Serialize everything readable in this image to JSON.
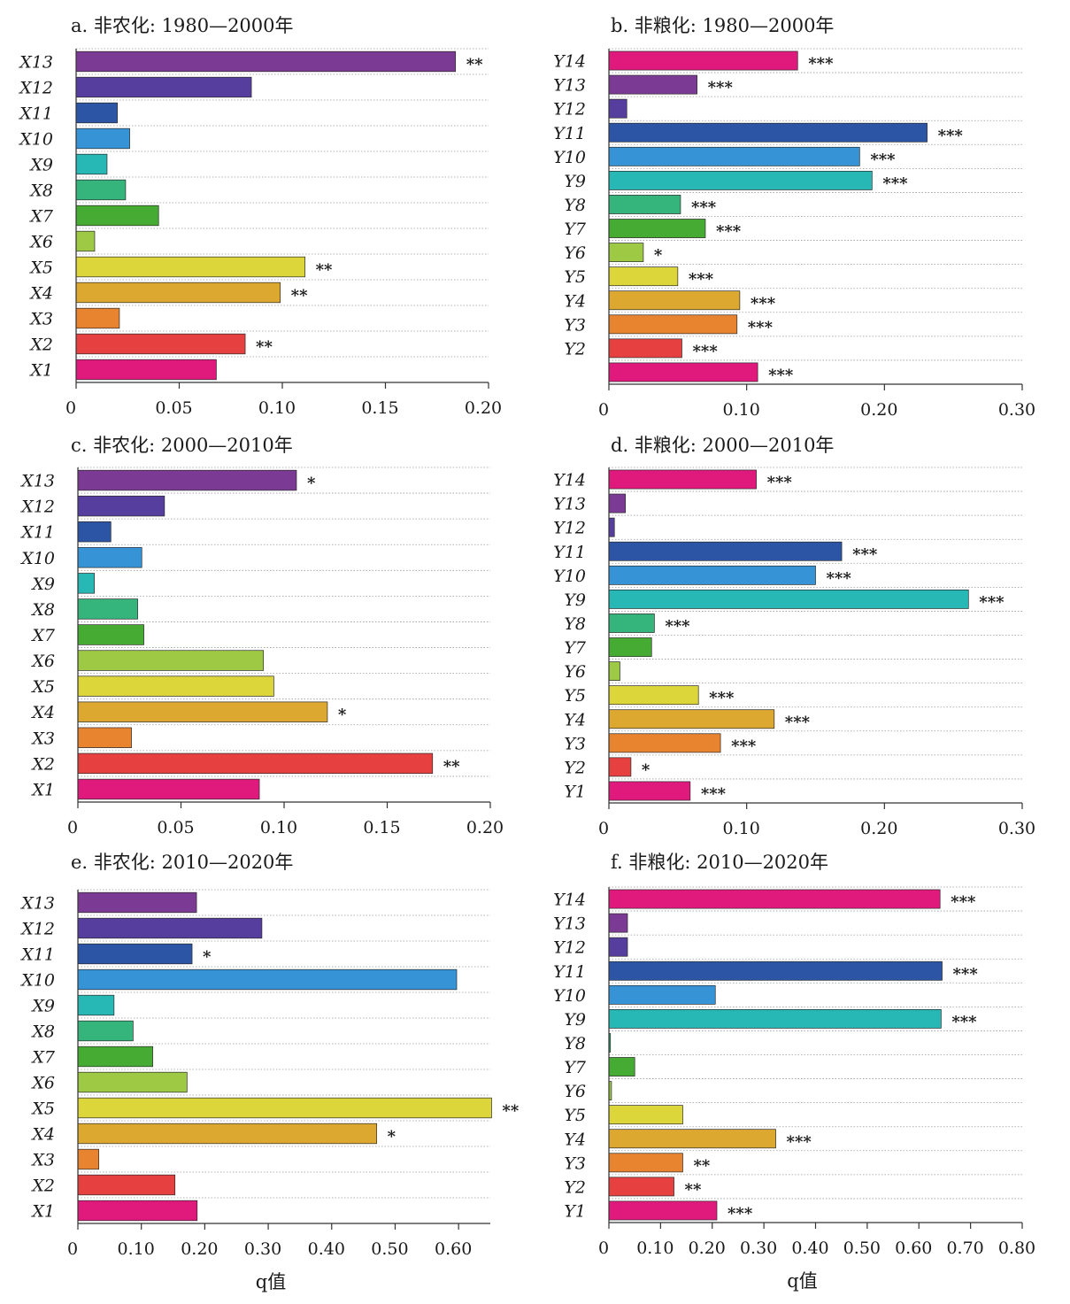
{
  "colors": {
    "X": [
      "#e0197c",
      "#e64040",
      "#e8832f",
      "#dca830",
      "#dcd63a",
      "#9ec944",
      "#46ab33",
      "#35b57c",
      "#27b8b5",
      "#3694d6",
      "#2c55a6",
      "#553e9d",
      "#7b3a93"
    ],
    "Y": [
      "#e0197c",
      "#e64040",
      "#e8832f",
      "#dca830",
      "#dcd63a",
      "#9ec944",
      "#46ab33",
      "#35b57c",
      "#27b8b5",
      "#3694d6",
      "#2c55a6",
      "#553e9d",
      "#7b3a93",
      "#e0197c"
    ],
    "grid": "#9a9a9a",
    "axis": "#333333"
  },
  "chart_data": [
    {
      "id": "a",
      "type": "bar",
      "orientation": "horizontal",
      "title": "a. 非农化: 1980—2000年",
      "categories": [
        "X1",
        "X2",
        "X3",
        "X4",
        "X5",
        "X6",
        "X7",
        "X8",
        "X9",
        "X10",
        "X11",
        "X12",
        "X13"
      ],
      "values": [
        0.068,
        0.082,
        0.021,
        0.099,
        0.111,
        0.009,
        0.04,
        0.024,
        0.015,
        0.026,
        0.02,
        0.085,
        0.184
      ],
      "significance": [
        "",
        "**",
        "",
        "**",
        "**",
        "",
        "",
        "",
        "",
        "",
        "",
        "",
        "**"
      ],
      "xlim": [
        0,
        0.2
      ],
      "xticks": [
        "0",
        "0.05",
        "0.10",
        "0.15",
        "0.20"
      ],
      "xlabel": "",
      "grid": "horizontal dotted"
    },
    {
      "id": "b",
      "type": "bar",
      "orientation": "horizontal",
      "title": "b. 非粮化: 1980—2000年",
      "categories": [
        "",
        "Y2",
        "Y3",
        "Y4",
        "Y5",
        "Y6",
        "Y7",
        "Y8",
        "Y9",
        "Y10",
        "Y11",
        "Y12",
        "Y13",
        "Y14"
      ],
      "values": [
        0.108,
        0.053,
        0.093,
        0.095,
        0.05,
        0.025,
        0.07,
        0.052,
        0.191,
        0.182,
        0.231,
        0.013,
        0.064,
        0.137
      ],
      "significance": [
        "***",
        "***",
        "***",
        "***",
        "***",
        "*",
        "***",
        "***",
        "***",
        "***",
        "***",
        "",
        "***",
        "***"
      ],
      "xlim": [
        0,
        0.3
      ],
      "xticks": [
        "0",
        "0.10",
        "0.20",
        "0.30"
      ],
      "xlabel": "",
      "grid": "horizontal dotted"
    },
    {
      "id": "c",
      "type": "bar",
      "orientation": "horizontal",
      "title": "c. 非农化: 2000—2010年",
      "categories": [
        "X1",
        "X2",
        "X3",
        "X4",
        "X5",
        "X6",
        "X7",
        "X8",
        "X9",
        "X10",
        "X11",
        "X12",
        "X13"
      ],
      "values": [
        0.088,
        0.172,
        0.026,
        0.121,
        0.095,
        0.09,
        0.032,
        0.029,
        0.008,
        0.031,
        0.016,
        0.042,
        0.106
      ],
      "significance": [
        "",
        "**",
        "",
        "*",
        "",
        "",
        "",
        "",
        "",
        "",
        "",
        "",
        "*"
      ],
      "xlim": [
        0,
        0.2
      ],
      "xticks": [
        "0",
        "0.05",
        "0.10",
        "0.15",
        "0.20"
      ],
      "xlabel": "",
      "grid": "horizontal dotted"
    },
    {
      "id": "d",
      "type": "bar",
      "orientation": "horizontal",
      "title": "d. 非粮化: 2000—2010年",
      "categories": [
        "Y1",
        "Y2",
        "Y3",
        "Y4",
        "Y5",
        "Y6",
        "Y7",
        "Y8",
        "Y9",
        "Y10",
        "Y11",
        "Y12",
        "Y13",
        "Y14"
      ],
      "values": [
        0.059,
        0.016,
        0.081,
        0.12,
        0.065,
        0.008,
        0.031,
        0.033,
        0.261,
        0.15,
        0.169,
        0.004,
        0.012,
        0.107
      ],
      "significance": [
        "***",
        "*",
        "***",
        "***",
        "***",
        "",
        "",
        "***",
        "***",
        "***",
        "***",
        "",
        "",
        "***"
      ],
      "xlim": [
        0,
        0.3
      ],
      "xticks": [
        "0",
        "0.10",
        "0.20",
        "0.30"
      ],
      "xlabel": "",
      "grid": "horizontal dotted"
    },
    {
      "id": "e",
      "type": "bar",
      "orientation": "horizontal",
      "title": "e. 非农化: 2010—2020年",
      "categories": [
        "X1",
        "X2",
        "X3",
        "X4",
        "X5",
        "X6",
        "X7",
        "X8",
        "X9",
        "X10",
        "X11",
        "X12",
        "X13"
      ],
      "values": [
        0.188,
        0.153,
        0.033,
        0.471,
        0.652,
        0.172,
        0.118,
        0.087,
        0.057,
        0.597,
        0.18,
        0.29,
        0.187
      ],
      "significance": [
        "",
        "",
        "",
        "*",
        "**",
        "",
        "",
        "",
        "",
        "",
        "*",
        "",
        ""
      ],
      "xlim": [
        0,
        0.65
      ],
      "xticks": [
        "0",
        "0.10",
        "0.20",
        "0.30",
        "0.40",
        "0.50",
        "0.60"
      ],
      "xlabel": "q值",
      "grid": "horizontal dotted"
    },
    {
      "id": "f",
      "type": "bar",
      "orientation": "horizontal",
      "title": "f. 非粮化: 2010—2020年",
      "categories": [
        "Y1",
        "Y2",
        "Y3",
        "Y4",
        "Y5",
        "Y6",
        "Y7",
        "Y8",
        "Y9",
        "Y10",
        "Y11",
        "Y12",
        "Y13",
        "Y14"
      ],
      "values": [
        0.209,
        0.126,
        0.143,
        0.323,
        0.143,
        0.005,
        0.05,
        0.003,
        0.643,
        0.206,
        0.645,
        0.036,
        0.036,
        0.641
      ],
      "significance": [
        "***",
        "**",
        "**",
        "***",
        "",
        "",
        "",
        "",
        "***",
        "",
        "***",
        "",
        "",
        "***"
      ],
      "xlim": [
        0,
        0.8
      ],
      "xticks": [
        "0",
        "0.10",
        "0.20",
        "0.30",
        "0.40",
        "0.50",
        "0.60",
        "0.70",
        "0.80"
      ],
      "xlabel": "q值",
      "grid": "horizontal dotted"
    }
  ]
}
